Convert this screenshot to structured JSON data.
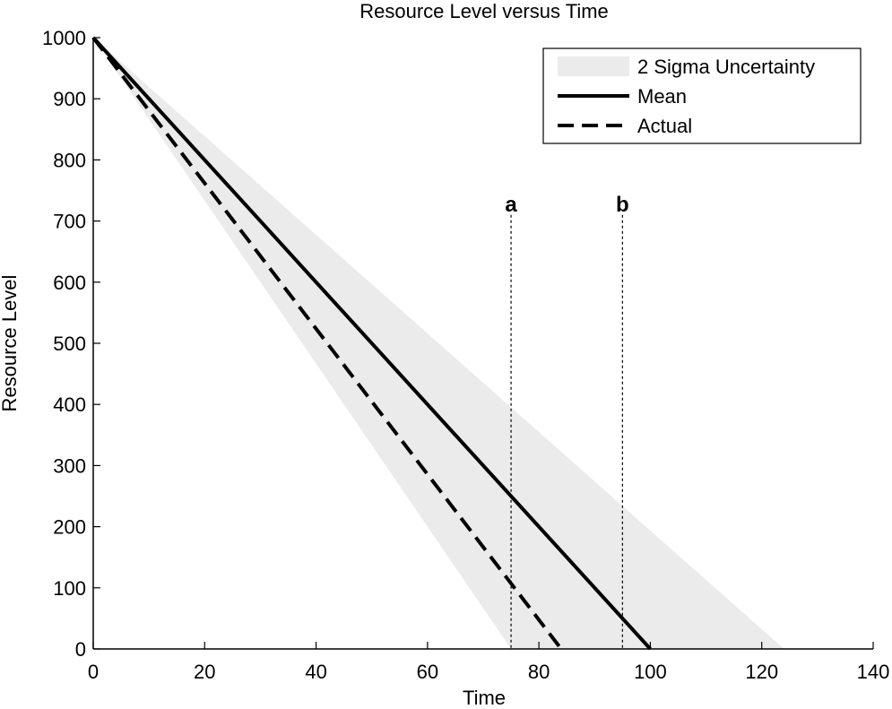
{
  "chart_data": {
    "type": "line",
    "title": "Resource Level versus Time",
    "xlabel": "Time",
    "ylabel": "Resource Level",
    "xlim": [
      0,
      140
    ],
    "ylim": [
      0,
      1000
    ],
    "xticks": [
      0,
      20,
      40,
      60,
      80,
      100,
      120,
      140
    ],
    "yticks": [
      0,
      100,
      200,
      300,
      400,
      500,
      600,
      700,
      800,
      900,
      1000
    ],
    "grid": false,
    "legend_position": "top-right",
    "band": {
      "name": "2 Sigma Uncertainty",
      "color": "#ebebeb",
      "points": [
        {
          "x": 0,
          "y": 1000
        },
        {
          "x": 124,
          "y": 0
        },
        {
          "x": 75,
          "y": 0
        }
      ]
    },
    "series": [
      {
        "name": "Mean",
        "style": "solid",
        "color": "#000000",
        "x": [
          0,
          100
        ],
        "y": [
          1000,
          0
        ]
      },
      {
        "name": "Actual",
        "style": "dashed",
        "color": "#000000",
        "x": [
          0,
          84
        ],
        "y": [
          1000,
          0
        ]
      }
    ],
    "vlines": [
      {
        "x": 75,
        "label": "a",
        "style": "dotted"
      },
      {
        "x": 95,
        "label": "b",
        "style": "dotted"
      }
    ]
  }
}
